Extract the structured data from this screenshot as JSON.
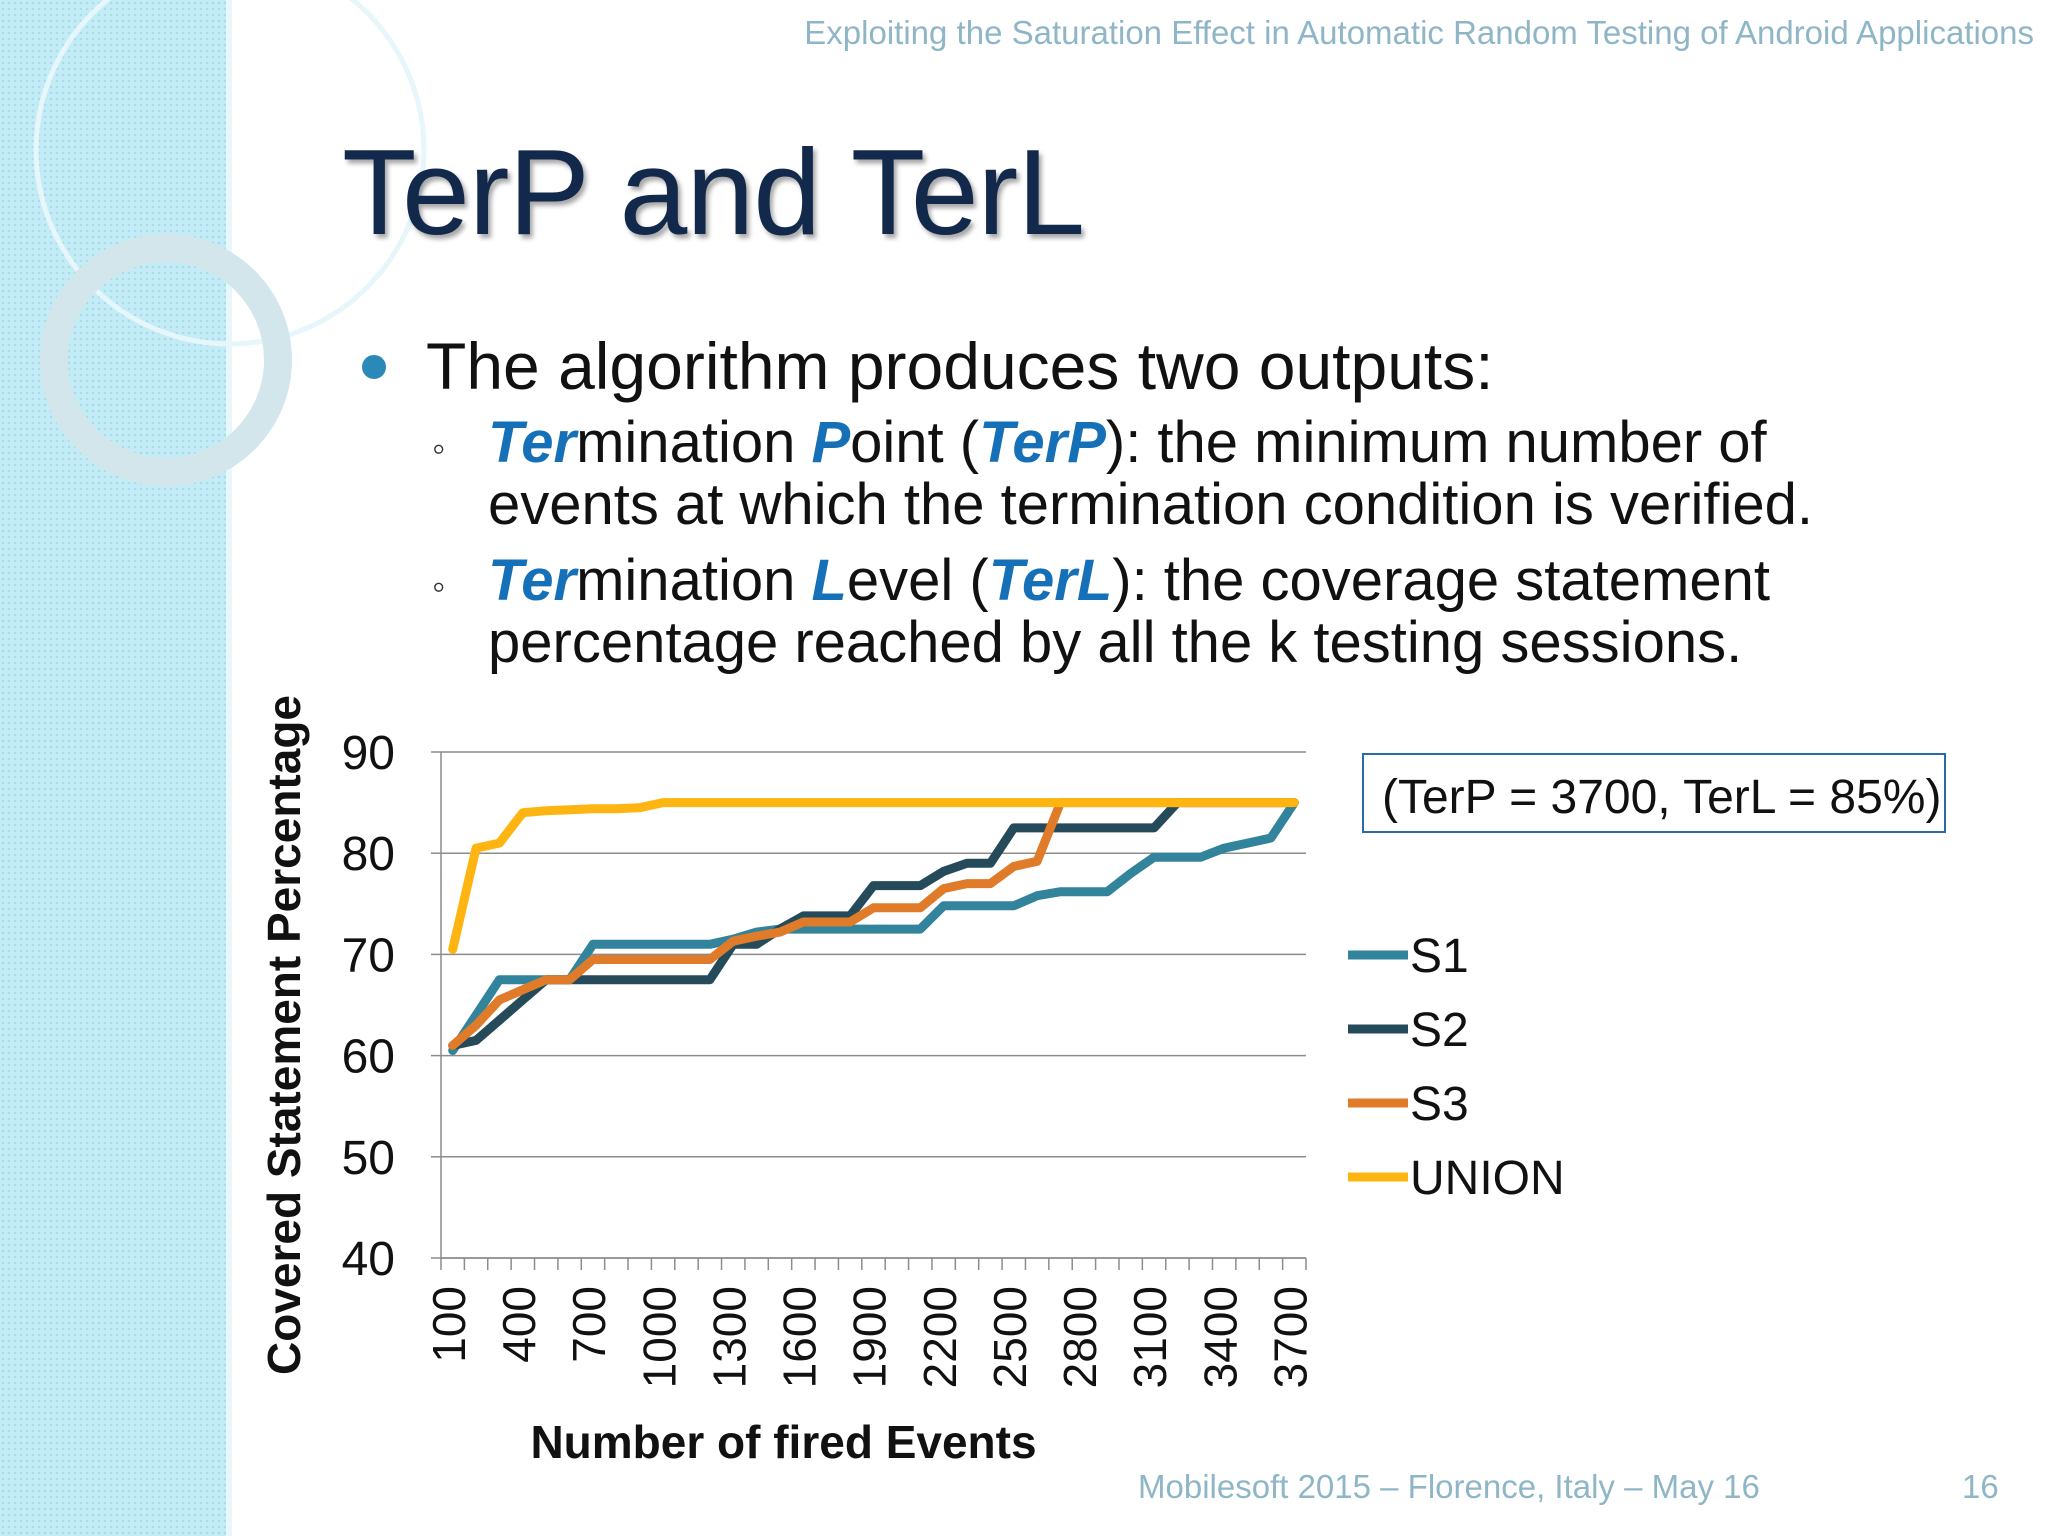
{
  "header": {
    "text": "Exploiting the Saturation Effect in Automatic Random Testing of Android Applications"
  },
  "title": "TerP and TerL",
  "bullet": {
    "main": "The algorithm produces two outputs:",
    "sub1": {
      "marker": "◦",
      "w1_hl": "Ter",
      "w1_rest": "mination ",
      "w2_hl": "P",
      "w2_rest": "oint (",
      "w3_hl": "TerP",
      "w3_rest": "): the minimum number of",
      "line2": "events at which the termination condition is verified."
    },
    "sub2": {
      "marker": "◦",
      "w1_hl": "Ter",
      "w1_rest": "mination ",
      "w2_hl": "L",
      "w2_rest": "evel (",
      "w3_hl": "TerL",
      "w3_rest": "): the coverage statement",
      "line2": "percentage reached by all the k testing sessions."
    }
  },
  "annotation": "(TerP = 3700, TerL = 85%)",
  "footer": {
    "center": "Mobilesoft 2015 – Florence, Italy – May 16",
    "page": "16"
  },
  "colors": {
    "accent": "#1670b8",
    "title": "#13294b",
    "sidebar": "#c4ecf6"
  },
  "chart_data": {
    "type": "line",
    "xlabel": "Number of fired Events",
    "ylabel": "Covered Statement Percentage",
    "ylim": [
      40,
      90
    ],
    "yticks": [
      40,
      50,
      60,
      70,
      80,
      90
    ],
    "grid": true,
    "legend_position": "right",
    "x": [
      100,
      200,
      300,
      400,
      500,
      600,
      700,
      800,
      900,
      1000,
      1100,
      1200,
      1300,
      1400,
      1500,
      1600,
      1700,
      1800,
      1900,
      2000,
      2100,
      2200,
      2300,
      2400,
      2500,
      2600,
      2700,
      2800,
      2900,
      3000,
      3100,
      3200,
      3300,
      3400,
      3500,
      3600,
      3700
    ],
    "xtick_labels": [
      "100",
      "400",
      "700",
      "1000",
      "1300",
      "1600",
      "1900",
      "2200",
      "2500",
      "2800",
      "3100",
      "3400",
      "3700"
    ],
    "series": [
      {
        "name": "S1",
        "color": "#31849b",
        "values": [
          60.5,
          64,
          67.5,
          67.5,
          67.5,
          67.5,
          71,
          71,
          71,
          71,
          71,
          71,
          71.5,
          72.2,
          72.5,
          72.5,
          72.5,
          72.5,
          72.5,
          72.5,
          72.5,
          74.8,
          74.8,
          74.8,
          74.8,
          75.8,
          76.2,
          76.2,
          76.2,
          78,
          79.6,
          79.6,
          79.6,
          80.5,
          81,
          81.5,
          85
        ]
      },
      {
        "name": "S2",
        "color": "#254a5a",
        "values": [
          61,
          61.5,
          63.5,
          65.5,
          67.5,
          67.5,
          67.5,
          67.5,
          67.5,
          67.5,
          67.5,
          67.5,
          71,
          71,
          72.5,
          73.8,
          73.8,
          73.8,
          76.8,
          76.8,
          76.8,
          78.2,
          79,
          79,
          82.5,
          82.5,
          82.5,
          82.5,
          82.5,
          82.5,
          82.5,
          85,
          85,
          85,
          85,
          85,
          85
        ]
      },
      {
        "name": "S3",
        "color": "#e07b2a",
        "values": [
          61,
          63,
          65.5,
          66.5,
          67.5,
          67.5,
          69.5,
          69.5,
          69.5,
          69.5,
          69.5,
          69.5,
          71.3,
          71.8,
          72.2,
          73.2,
          73.2,
          73.2,
          74.6,
          74.6,
          74.6,
          76.5,
          77,
          77,
          78.7,
          79.2,
          85,
          85,
          85,
          85,
          85,
          85,
          85,
          85,
          85,
          85,
          85
        ]
      },
      {
        "name": "UNION",
        "color": "#ffb511",
        "values": [
          70.5,
          80.5,
          81,
          84,
          84.2,
          84.3,
          84.4,
          84.4,
          84.5,
          85,
          85,
          85,
          85,
          85,
          85,
          85,
          85,
          85,
          85,
          85,
          85,
          85,
          85,
          85,
          85,
          85,
          85,
          85,
          85,
          85,
          85,
          85,
          85,
          85,
          85,
          85,
          85
        ]
      }
    ]
  }
}
